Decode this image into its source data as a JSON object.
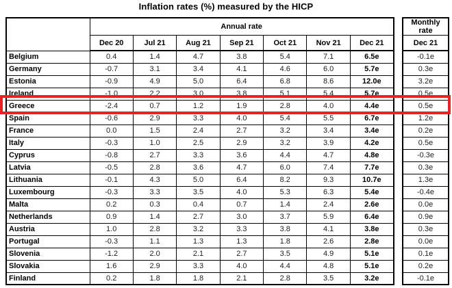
{
  "chart_data": {
    "type": "table",
    "title": "Inflation rates (%) measured by the HICP",
    "column_groups": [
      "Annual rate",
      "Monthly rate"
    ],
    "annual_columns": [
      "Dec 20",
      "Jul 21",
      "Aug 21",
      "Sep 21",
      "Oct 21",
      "Nov 21",
      "Dec 21"
    ],
    "monthly_column": "Dec 21",
    "rows": [
      {
        "country": "Belgium",
        "annual": [
          "0.4",
          "1.4",
          "4.7",
          "3.8",
          "5.4",
          "7.1",
          "6.5e"
        ],
        "monthly": "-0.1e"
      },
      {
        "country": "Germany",
        "annual": [
          "-0.7",
          "3.1",
          "3.4",
          "4.1",
          "4.6",
          "6.0",
          "5.7e"
        ],
        "monthly": "0.3e"
      },
      {
        "country": "Estonia",
        "annual": [
          "-0.9",
          "4.9",
          "5.0",
          "6.4",
          "6.8",
          "8.6",
          "12.0e"
        ],
        "monthly": "3.2e"
      },
      {
        "country": "Ireland",
        "annual": [
          "-1.0",
          "2.2",
          "3.0",
          "3.8",
          "5.1",
          "5.4",
          "5.7e"
        ],
        "monthly": "0.5e"
      },
      {
        "country": "Greece",
        "annual": [
          "-2.4",
          "0.7",
          "1.2",
          "1.9",
          "2.8",
          "4.0",
          "4.4e"
        ],
        "monthly": "0.5e"
      },
      {
        "country": "Spain",
        "annual": [
          "-0.6",
          "2.9",
          "3.3",
          "4.0",
          "5.4",
          "5.5",
          "6.7e"
        ],
        "monthly": "1.2e"
      },
      {
        "country": "France",
        "annual": [
          "0.0",
          "1.5",
          "2.4",
          "2.7",
          "3.2",
          "3.4",
          "3.4e"
        ],
        "monthly": "0.2e"
      },
      {
        "country": "Italy",
        "annual": [
          "-0.3",
          "1.0",
          "2.5",
          "2.9",
          "3.2",
          "3.9",
          "4.2e"
        ],
        "monthly": "0.5e"
      },
      {
        "country": "Cyprus",
        "annual": [
          "-0.8",
          "2.7",
          "3.3",
          "3.6",
          "4.4",
          "4.7",
          "4.8e"
        ],
        "monthly": "-0.3e"
      },
      {
        "country": "Latvia",
        "annual": [
          "-0.5",
          "2.8",
          "3.6",
          "4.7",
          "6.0",
          "7.4",
          "7.7e"
        ],
        "monthly": "0.3e"
      },
      {
        "country": "Lithuania",
        "annual": [
          "-0.1",
          "4.3",
          "5.0",
          "6.4",
          "8.2",
          "9.3",
          "10.7e"
        ],
        "monthly": "1.3e"
      },
      {
        "country": "Luxembourg",
        "annual": [
          "-0.3",
          "3.3",
          "3.5",
          "4.0",
          "5.3",
          "6.3",
          "5.4e"
        ],
        "monthly": "-0.4e"
      },
      {
        "country": "Malta",
        "annual": [
          "0.2",
          "0.3",
          "0.4",
          "0.7",
          "1.4",
          "2.4",
          "2.6e"
        ],
        "monthly": "0.0e"
      },
      {
        "country": "Netherlands",
        "annual": [
          "0.9",
          "1.4",
          "2.7",
          "3.0",
          "3.7",
          "5.9",
          "6.4e"
        ],
        "monthly": "0.9e"
      },
      {
        "country": "Austria",
        "annual": [
          "1.0",
          "2.8",
          "3.2",
          "3.3",
          "3.8",
          "4.1",
          "3.8e"
        ],
        "monthly": "0.3e"
      },
      {
        "country": "Portugal",
        "annual": [
          "-0.3",
          "1.1",
          "1.3",
          "1.3",
          "1.8",
          "2.6",
          "2.8e"
        ],
        "monthly": "0.0e"
      },
      {
        "country": "Slovenia",
        "annual": [
          "-1.2",
          "2.0",
          "2.1",
          "2.7",
          "3.5",
          "4.9",
          "5.1e"
        ],
        "monthly": "0.1e"
      },
      {
        "country": "Slovakia",
        "annual": [
          "1.6",
          "2.9",
          "3.3",
          "4.0",
          "4.4",
          "4.8",
          "5.1e"
        ],
        "monthly": "0.2e"
      },
      {
        "country": "Finland",
        "annual": [
          "0.2",
          "1.8",
          "1.8",
          "2.1",
          "2.8",
          "3.5",
          "3.2e"
        ],
        "monthly": "-0.1e"
      }
    ],
    "highlighted_row": "Greece",
    "highlight_color": "#e42328"
  }
}
